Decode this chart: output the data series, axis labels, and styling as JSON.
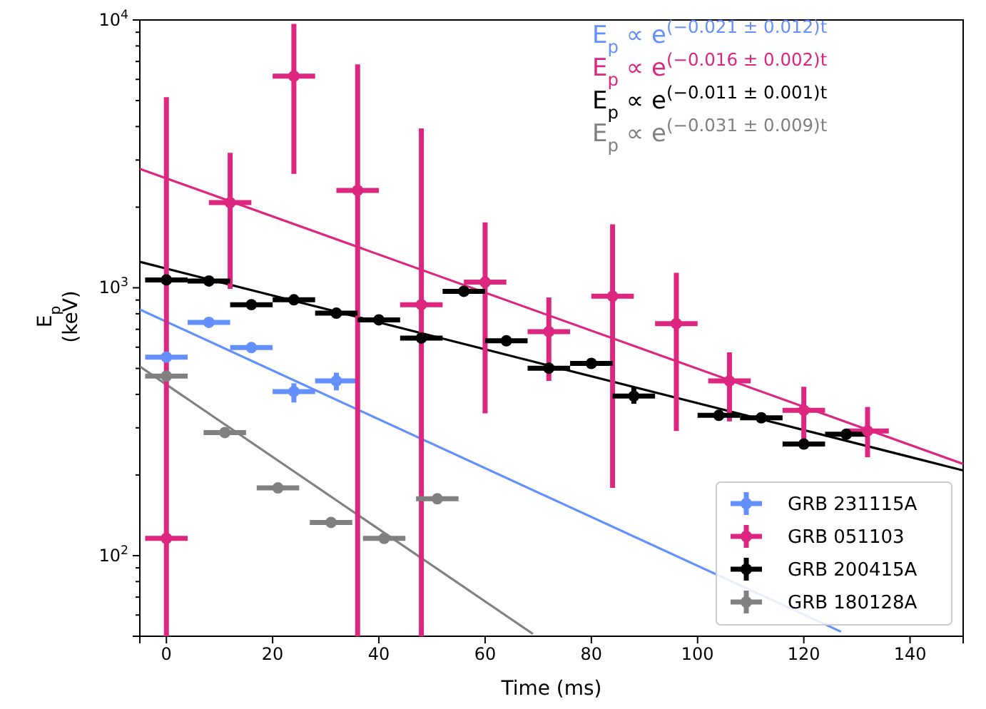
{
  "chart_data": {
    "type": "scatter",
    "xlabel": "Time (ms)",
    "ylabel": "E$_{p}$ (keV)",
    "log": "y",
    "legend": "bottom right",
    "marker": "circle",
    "xlim": [
      -5,
      150
    ],
    "xticks": [
      0,
      20,
      40,
      60,
      80,
      100,
      120,
      140
    ],
    "ylim": [
      50,
      10000
    ],
    "yticks": [
      {
        "value": 100,
        "label": "10$^{2}$"
      },
      {
        "value": 1000,
        "label": "10$^{3}$"
      },
      {
        "value": 10000,
        "label": "10$^{4}$"
      }
    ],
    "annotations": [
      "E$_{p}$ ∝ e$^{(−0.021 ± 0.012)t}$",
      "E$_{p}$ ∝ e$^{(−0.016 ± 0.002)t}$",
      "E$_{p}$ ∝ e$^{(−0.011 ± 0.001)t}$",
      "E$_{p}$ ∝ e$^{(−0.031 ± 0.009)t}$"
    ],
    "series": [
      {
        "name": "GRB 231115A",
        "color": "#648fff",
        "x": [
          0,
          8,
          16,
          24,
          32
        ],
        "values": [
          551,
          743,
          598,
          410,
          449
        ],
        "errors": [
          null,
          null,
          null,
          [
            373,
            440
          ],
          [
            414,
            482
          ]
        ],
        "xerrors": [
          4,
          4,
          4,
          4,
          4
        ]
      },
      {
        "name": "GRB 051103",
        "color": "#dc267f",
        "x": [
          0,
          12,
          24,
          36,
          48,
          60,
          72,
          84,
          96,
          106,
          120,
          132
        ],
        "values": [
          116,
          2080,
          6170,
          2310,
          865,
          1050,
          686,
          930,
          735,
          449,
          349,
          292
        ],
        "errors": [
          [
            50,
            5150
          ],
          [
            990,
            3190
          ],
          [
            2665,
            9670
          ],
          [
            50,
            6830
          ],
          [
            50,
            3940
          ],
          [
            340,
            1755
          ],
          [
            449,
            920
          ],
          [
            179,
            1725
          ],
          [
            292,
            1137
          ],
          [
            317,
            574
          ],
          [
            264,
            427
          ],
          [
            233,
            359
          ]
        ],
        "xerrors": [
          4,
          4,
          4,
          4,
          4,
          4,
          4,
          4,
          4,
          4,
          4,
          4
        ]
      },
      {
        "name": "GRB 200415A",
        "color": "#000000",
        "x": [
          0,
          8,
          16,
          24,
          32,
          40,
          48,
          56,
          64,
          72,
          80,
          88,
          104,
          112,
          120,
          128
        ],
        "values": [
          1070,
          1060,
          865,
          902,
          804,
          759,
          649,
          970,
          634,
          501,
          522,
          394,
          334,
          327,
          261,
          284
        ],
        "errors": [
          null,
          null,
          null,
          null,
          null,
          null,
          null,
          null,
          null,
          null,
          null,
          [
            369,
            426
          ],
          null,
          null,
          null,
          null
        ],
        "xerrors": [
          4,
          4,
          4,
          4,
          4,
          4,
          4,
          4,
          4,
          4,
          4,
          4,
          4,
          4,
          4,
          4
        ]
      },
      {
        "name": "GRB 180128A",
        "color": "#808080",
        "x": [
          0,
          11,
          21,
          31,
          41,
          51
        ],
        "values": [
          468,
          288,
          179,
          133,
          116,
          163
        ],
        "xerrors": [
          4,
          4,
          4,
          4,
          4,
          4
        ]
      },
      {
        "type": "line",
        "marker": "none",
        "color": "#648fff",
        "x": [
          -5,
          127
        ],
        "values": [
          830,
          52
        ]
      },
      {
        "type": "line",
        "marker": "none",
        "color": "#dc267f",
        "x": [
          -5,
          150
        ],
        "values": [
          2780,
          220
        ]
      },
      {
        "type": "line",
        "marker": "none",
        "color": "#000000",
        "x": [
          -5,
          150
        ],
        "values": [
          1250,
          208
        ]
      },
      {
        "type": "line",
        "marker": "none",
        "color": "#808080",
        "x": [
          -5,
          69
        ],
        "values": [
          508,
          51
        ]
      }
    ]
  }
}
